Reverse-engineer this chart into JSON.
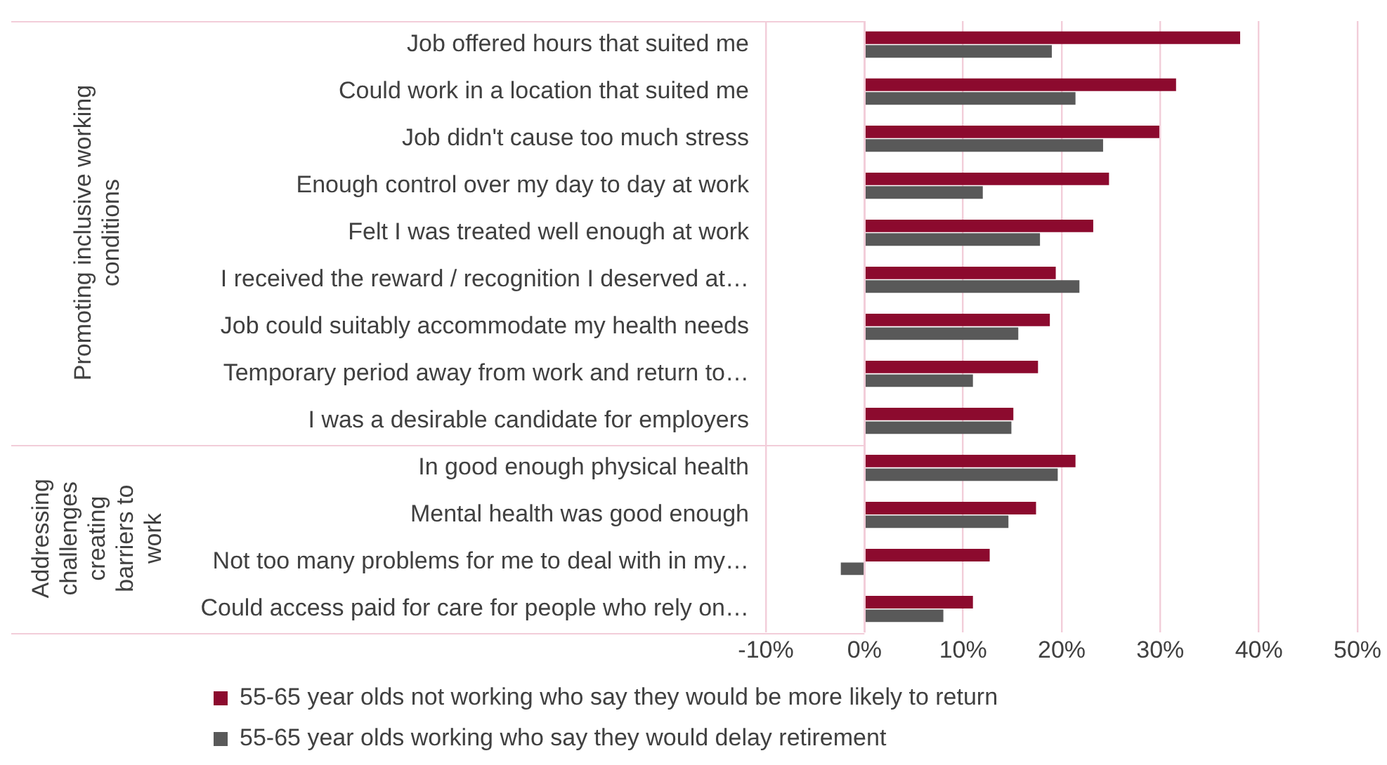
{
  "chart_data": {
    "type": "bar",
    "orientation": "horizontal",
    "categories": [
      "Job offered hours that suited me",
      "Could work in a location that suited me",
      "Job didn't cause too much stress",
      "Enough control over my day to day at work",
      "Felt I was treated well enough at work",
      "I received the reward / recognition I deserved at…",
      "Job could suitably accommodate my health needs",
      "Temporary period away from work and return to…",
      "I was a desirable candidate for employers",
      "In good enough physical health",
      "Mental health was good enough",
      "Not too many problems for me to deal with in my…",
      "Could access paid for care for people who rely on…"
    ],
    "series": [
      {
        "name": "55-65 year olds not working who say they would be more likely to return",
        "color": "#8c0a2e",
        "values": [
          38.1,
          31.6,
          29.9,
          24.8,
          23.2,
          19.4,
          18.8,
          17.6,
          15.1,
          21.4,
          17.4,
          12.7,
          11.0
        ]
      },
      {
        "name": "55-65 year olds working who say they would delay retirement",
        "color": "#595959",
        "values": [
          19.0,
          21.4,
          24.2,
          12.0,
          17.8,
          21.8,
          15.6,
          11.0,
          14.9,
          19.6,
          14.6,
          -2.4,
          8.0
        ]
      }
    ],
    "xlim": [
      -10,
      50
    ],
    "xticks": [
      {
        "value": -10,
        "label": "-10%"
      },
      {
        "value": 0,
        "label": "0%"
      },
      {
        "value": 10,
        "label": "10%"
      },
      {
        "value": 20,
        "label": "20%"
      },
      {
        "value": 30,
        "label": "30%"
      },
      {
        "value": 40,
        "label": "40%"
      },
      {
        "value": 50,
        "label": "50%"
      }
    ],
    "annotations": [
      "Promoting inclusive working conditions",
      "Addressing challenges creating barriers to work"
    ],
    "grid": "x",
    "legend": "bottom"
  }
}
